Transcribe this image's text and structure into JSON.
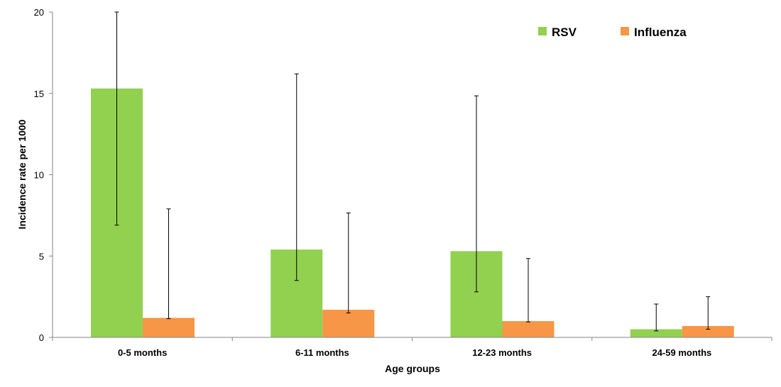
{
  "chart_data": {
    "type": "bar",
    "categories": [
      "0-5 months",
      "6-11 months",
      "12-23 months",
      "24-59 months"
    ],
    "series": [
      {
        "name": "RSV",
        "color": "#92d050",
        "values": [
          15.3,
          5.4,
          5.3,
          0.5
        ],
        "error_low": [
          6.9,
          3.5,
          2.8,
          0.4
        ],
        "error_high": [
          20.0,
          16.2,
          14.85,
          2.05
        ]
      },
      {
        "name": "Influenza",
        "color": "#f79646",
        "values": [
          1.2,
          1.7,
          1.0,
          0.7
        ],
        "error_low": [
          1.15,
          1.5,
          0.95,
          0.5
        ],
        "error_high": [
          7.9,
          7.65,
          4.85,
          2.5
        ]
      }
    ],
    "xlabel": "Age groups",
    "ylabel": "Incidence rate per 1000",
    "ylim": [
      0,
      20
    ],
    "yticks": [
      "0",
      "5",
      "10",
      "15",
      "20"
    ],
    "grid": false,
    "legend_position": "top-right"
  }
}
